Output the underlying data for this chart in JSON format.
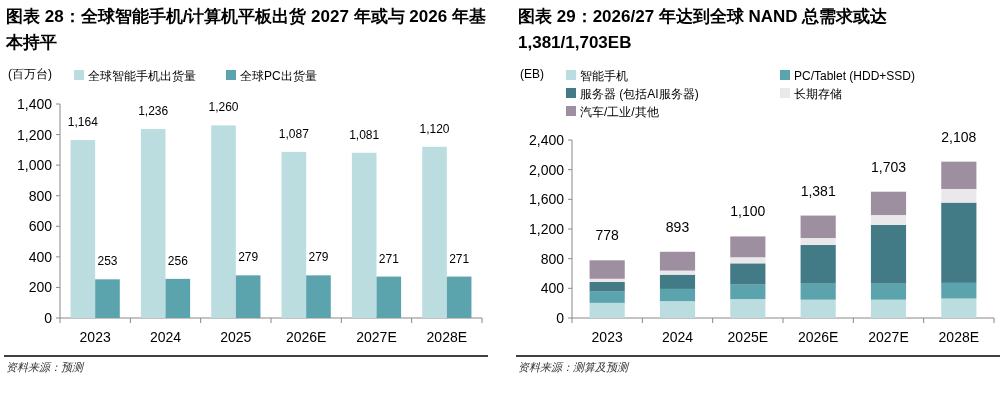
{
  "chart_data": [
    {
      "type": "bar",
      "title": "图表 28：全球智能手机/计算机平板出货 2027 年或与 2026 年基本持平",
      "ylabel": "(百万台)",
      "categories": [
        "2023",
        "2024",
        "2025",
        "2026E",
        "2027E",
        "2028E"
      ],
      "series": [
        {
          "name": "全球智能手机出货量",
          "color": "#bcdde0",
          "values": [
            1164,
            1236,
            1260,
            1087,
            1081,
            1120
          ],
          "value_labels": [
            "1,164",
            "1,236",
            "1,260",
            "1,087",
            "1,081",
            "1,120"
          ]
        },
        {
          "name": "全球PC出货量",
          "color": "#5ba3ad",
          "values": [
            253,
            256,
            279,
            279,
            271,
            271
          ],
          "value_labels": [
            "253",
            "256",
            "279",
            "279",
            "271",
            "271"
          ]
        }
      ],
      "ylim": [
        0,
        1400
      ],
      "yticks": [
        0,
        200,
        400,
        600,
        800,
        {
          "value": 1000,
          "label": "1,000"
        },
        {
          "value": 1200,
          "label": "1,200"
        },
        {
          "value": 1400,
          "label": "1,400"
        }
      ],
      "legend": "top",
      "annotations": [
        "资料来源：预测"
      ]
    },
    {
      "type": "bar",
      "title": "图表 29：2026/27 年达到全球 NAND 总需求或达 1,381/1,703EB",
      "ylabel": "(EB)",
      "categories": [
        "2023",
        "2024",
        "2025E",
        "2026E",
        "2027E",
        "2028E"
      ],
      "stacked": true,
      "series": [
        {
          "name": "智能手机",
          "color": "#bcdde0",
          "values": [
            204,
            227,
            255,
            247,
            247,
            263
          ]
        },
        {
          "name": "PC/Tablet (HDD+SSD)",
          "color": "#5ba3ad",
          "values": [
            153,
            165,
            196,
            216,
            216,
            211
          ]
        },
        {
          "name": "服务器 (包括AI服务器)",
          "color": "#427a85",
          "values": [
            129,
            192,
            286,
            521,
            791,
            1082
          ]
        },
        {
          "name": "长期存储",
          "color": "#ebe8ec",
          "values": [
            43,
            55,
            82,
            94,
            134,
            184
          ]
        },
        {
          "name": "汽车/工业/其他",
          "color": "#9e8fa0",
          "values": [
            249,
            254,
            281,
            303,
            315,
            368
          ]
        }
      ],
      "totals": [
        "778",
        "893",
        "1,100",
        "1,381",
        "1,703",
        "2,108"
      ],
      "ylim": [
        0,
        2400
      ],
      "yticks": [
        0,
        400,
        800,
        {
          "value": 1200,
          "label": "1,200"
        },
        {
          "value": 1600,
          "label": "1,600"
        },
        {
          "value": 2000,
          "label": "2,000"
        },
        {
          "value": 2400,
          "label": "2,400"
        }
      ],
      "legend": "top",
      "annotations": [
        "资料来源：测算及预测"
      ]
    }
  ]
}
